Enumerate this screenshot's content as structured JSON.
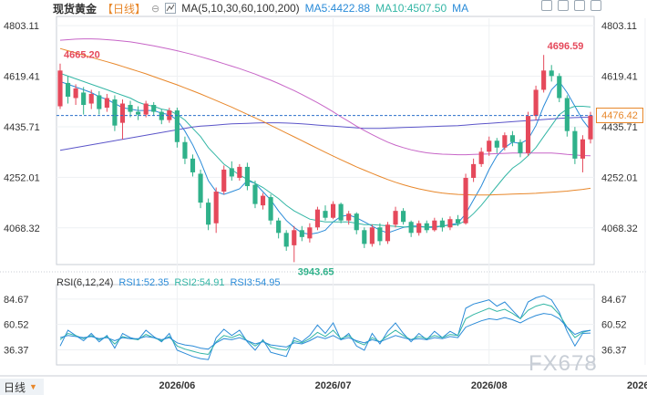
{
  "header": {
    "instrument": "现货黄金",
    "period": "【日线】",
    "ma_title": "MA(5,10,30,60,100,200)",
    "ma5": "MA5:4422.88",
    "ma10": "MA10:4507.50",
    "ma_next": "MA"
  },
  "rsi": {
    "title": "RSI(6,12,24)",
    "rsi1": "RSI1:52.35",
    "rsi2": "RSI2:54.91",
    "rsi3": "RSI3:54.95"
  },
  "footer": {
    "period_label": "日线"
  },
  "watermark": "FX678",
  "current_price_tag": "4476.42",
  "colors": {
    "up": "#e5495b",
    "down": "#2fb18a",
    "ma5": "#2a8bd8",
    "ma10": "#33b6a5",
    "ma30": "#5b55c9",
    "ma60": "#c765c7",
    "ma100": "#e8872a",
    "ma200": "#e8872a"
  },
  "chart_data": [
    {
      "type": "candlestick",
      "title": "现货黄金【日线】",
      "y_ticks": [
        "4803.11",
        "4619.41",
        "4435.71",
        "4252.01",
        "4068.32"
      ],
      "y_tick_values": [
        4803.11,
        4619.41,
        4435.71,
        4252.01,
        4068.32
      ],
      "ylim": [
        3935,
        4830
      ],
      "x_ticks": [
        "2026/06",
        "2026/07",
        "2026/08",
        "2026/09"
      ],
      "x_tick_index": [
        15,
        35,
        55,
        75
      ],
      "annotations": [
        {
          "text": "4665.20",
          "index": 0,
          "value": 4665.2
        },
        {
          "text": "4696.59",
          "index": 62,
          "value": 4696.59
        },
        {
          "text": "3943.65",
          "index": 30,
          "value": 3943.65
        }
      ],
      "last_price": 4476.42,
      "candles": [
        [
          4510,
          4640,
          4665,
          4500
        ],
        [
          4595,
          4545,
          4620,
          4520
        ],
        [
          4540,
          4575,
          4590,
          4515
        ],
        [
          4560,
          4515,
          4580,
          4480
        ],
        [
          4520,
          4555,
          4570,
          4500
        ],
        [
          4550,
          4500,
          4565,
          4480
        ],
        [
          4505,
          4540,
          4555,
          4490
        ],
        [
          4535,
          4440,
          4550,
          4420
        ],
        [
          4450,
          4520,
          4535,
          4390
        ],
        [
          4515,
          4490,
          4530,
          4470
        ],
        [
          4490,
          4480,
          4510,
          4460
        ],
        [
          4480,
          4520,
          4530,
          4470
        ],
        [
          4515,
          4490,
          4525,
          4475
        ],
        [
          4490,
          4460,
          4500,
          4445
        ],
        [
          4460,
          4495,
          4505,
          4450
        ],
        [
          4495,
          4380,
          4505,
          4360
        ],
        [
          4380,
          4320,
          4400,
          4300
        ],
        [
          4320,
          4270,
          4335,
          4255
        ],
        [
          4265,
          4160,
          4280,
          4140
        ],
        [
          4160,
          4080,
          4175,
          4060
        ],
        [
          4085,
          4200,
          4215,
          4050
        ],
        [
          4200,
          4280,
          4295,
          4190
        ],
        [
          4285,
          4255,
          4310,
          4240
        ],
        [
          4250,
          4290,
          4300,
          4240
        ],
        [
          4290,
          4220,
          4305,
          4205
        ],
        [
          4225,
          4155,
          4240,
          4140
        ],
        [
          4150,
          4185,
          4195,
          4135
        ],
        [
          4180,
          4095,
          4190,
          4080
        ],
        [
          4095,
          4050,
          4105,
          4030
        ],
        [
          4050,
          4000,
          4060,
          3985
        ],
        [
          4005,
          4060,
          4075,
          3943.65
        ],
        [
          4060,
          4035,
          4075,
          4020
        ],
        [
          4030,
          4070,
          4085,
          4015
        ],
        [
          4070,
          4135,
          4145,
          4060
        ],
        [
          4130,
          4105,
          4150,
          4095
        ],
        [
          4105,
          4155,
          4165,
          4100
        ],
        [
          4155,
          4095,
          4160,
          4085
        ],
        [
          4095,
          4120,
          4130,
          4080
        ],
        [
          4120,
          4060,
          4125,
          4045
        ],
        [
          4060,
          4010,
          4070,
          3995
        ],
        [
          4010,
          4070,
          4080,
          4000
        ],
        [
          4070,
          4020,
          4085,
          4005
        ],
        [
          4020,
          4080,
          4090,
          4010
        ],
        [
          4080,
          4130,
          4145,
          4070
        ],
        [
          4130,
          4090,
          4140,
          4080
        ],
        [
          4090,
          4050,
          4095,
          4035
        ],
        [
          4050,
          4085,
          4095,
          4040
        ],
        [
          4085,
          4060,
          4095,
          4050
        ],
        [
          4060,
          4095,
          4105,
          4055
        ],
        [
          4095,
          4070,
          4105,
          4055
        ],
        [
          4070,
          4100,
          4110,
          4060
        ],
        [
          4100,
          4085,
          4115,
          4075
        ],
        [
          4085,
          4250,
          4265,
          4080
        ],
        [
          4250,
          4300,
          4320,
          4235
        ],
        [
          4300,
          4345,
          4360,
          4290
        ],
        [
          4345,
          4385,
          4400,
          4330
        ],
        [
          4385,
          4360,
          4395,
          4340
        ],
        [
          4360,
          4405,
          4415,
          4350
        ],
        [
          4405,
          4380,
          4420,
          4365
        ],
        [
          4380,
          4340,
          4390,
          4325
        ],
        [
          4340,
          4475,
          4490,
          4330
        ],
        [
          4475,
          4570,
          4585,
          4460
        ],
        [
          4570,
          4640,
          4696.59,
          4560
        ],
        [
          4640,
          4620,
          4660,
          4600
        ],
        [
          4620,
          4540,
          4630,
          4525
        ],
        [
          4540,
          4420,
          4550,
          4400
        ],
        [
          4420,
          4320,
          4435,
          4300
        ],
        [
          4320,
          4390,
          4405,
          4270
        ],
        [
          4390,
          4476.42,
          4490,
          4375
        ]
      ],
      "ma_series": [
        {
          "name": "MA5",
          "values": [
            4600,
            4590,
            4580,
            4570,
            4560,
            4545,
            4535,
            4520,
            4505,
            4500,
            4495,
            4495,
            4495,
            4485,
            4480,
            4460,
            4420,
            4370,
            4310,
            4240,
            4200,
            4190,
            4200,
            4210,
            4240,
            4230,
            4200,
            4170,
            4130,
            4095,
            4070,
            4050,
            4045,
            4050,
            4060,
            4090,
            4110,
            4115,
            4105,
            4090,
            4075,
            4060,
            4050,
            4060,
            4070,
            4075,
            4075,
            4070,
            4070,
            4075,
            4080,
            4085,
            4120,
            4170,
            4220,
            4280,
            4330,
            4360,
            4380,
            4375,
            4390,
            4440,
            4510,
            4570,
            4600,
            4560,
            4510,
            4460,
            4422.88
          ]
        },
        {
          "name": "MA10",
          "values": [
            4630,
            4620,
            4610,
            4600,
            4590,
            4580,
            4570,
            4560,
            4550,
            4540,
            4525,
            4515,
            4510,
            4500,
            4495,
            4480,
            4460,
            4430,
            4400,
            4360,
            4330,
            4300,
            4280,
            4260,
            4245,
            4230,
            4215,
            4195,
            4175,
            4150,
            4130,
            4115,
            4100,
            4095,
            4090,
            4090,
            4090,
            4090,
            4085,
            4080,
            4080,
            4078,
            4076,
            4074,
            4072,
            4072,
            4072,
            4072,
            4073,
            4075,
            4078,
            4080,
            4095,
            4120,
            4150,
            4185,
            4220,
            4255,
            4285,
            4305,
            4330,
            4360,
            4400,
            4440,
            4480,
            4500,
            4510,
            4510,
            4507.5
          ]
        },
        {
          "name": "MA30",
          "values": [
            4350,
            4355,
            4360,
            4365,
            4370,
            4375,
            4380,
            4385,
            4390,
            4395,
            4400,
            4405,
            4410,
            4415,
            4420,
            4425,
            4430,
            4435,
            4438,
            4440,
            4442,
            4444,
            4446,
            4447,
            4448,
            4449,
            4450,
            4450,
            4450,
            4449,
            4448,
            4446,
            4444,
            4442,
            4440,
            4438,
            4436,
            4434,
            4432,
            4430,
            4430,
            4430,
            4431,
            4432,
            4433,
            4434,
            4435,
            4436,
            4437,
            4438,
            4439,
            4440,
            4442,
            4444,
            4446,
            4448,
            4450,
            4452,
            4454,
            4456,
            4458,
            4460,
            4462,
            4464,
            4466,
            4468,
            4469,
            4470,
            4470
          ]
        },
        {
          "name": "MA60",
          "values": [
            4750,
            4752,
            4754,
            4755,
            4755,
            4754,
            4752,
            4750,
            4747,
            4744,
            4740,
            4735,
            4730,
            4724,
            4718,
            4712,
            4705,
            4698,
            4690,
            4682,
            4674,
            4665,
            4656,
            4647,
            4637,
            4627,
            4616,
            4605,
            4593,
            4580,
            4567,
            4553,
            4538,
            4523,
            4507,
            4490,
            4472,
            4455,
            4438,
            4422,
            4407,
            4393,
            4380,
            4369,
            4360,
            4352,
            4346,
            4341,
            4338,
            4336,
            4335,
            4334,
            4334,
            4335,
            4336,
            4337,
            4338,
            4339,
            4340,
            4340,
            4340,
            4340,
            4340,
            4340,
            4338,
            4335,
            4333,
            4331,
            4330
          ]
        },
        {
          "name": "MA100",
          "values": [
            4720,
            4712,
            4704,
            4696,
            4688,
            4680,
            4672,
            4664,
            4655,
            4646,
            4637,
            4628,
            4618,
            4608,
            4598,
            4588,
            4577,
            4566,
            4555,
            4543,
            4531,
            4519,
            4507,
            4494,
            4481,
            4468,
            4455,
            4441,
            4427,
            4413,
            4399,
            4385,
            4371,
            4357,
            4343,
            4329,
            4316,
            4303,
            4290,
            4278,
            4266,
            4255,
            4244,
            4234,
            4225,
            4217,
            4210,
            4204,
            4199,
            4195,
            4192,
            4190,
            4189,
            4188,
            4188,
            4188,
            4189,
            4190,
            4191,
            4192,
            4193,
            4194,
            4196,
            4198,
            4200,
            4202,
            4205,
            4208,
            4212
          ]
        }
      ]
    },
    {
      "type": "line",
      "title": "RSI(6,12,24)",
      "y_ticks": [
        "84.67",
        "60.52",
        "36.37"
      ],
      "y_tick_values": [
        84.67,
        60.52,
        36.37
      ],
      "ylim": [
        22,
        95
      ],
      "series": [
        {
          "name": "RSI1",
          "values": [
            40,
            55,
            50,
            45,
            52,
            44,
            50,
            38,
            52,
            48,
            46,
            55,
            49,
            44,
            52,
            36,
            33,
            30,
            28,
            27,
            48,
            56,
            50,
            55,
            44,
            36,
            46,
            34,
            32,
            30,
            48,
            44,
            50,
            60,
            52,
            62,
            46,
            52,
            40,
            36,
            52,
            42,
            54,
            62,
            52,
            44,
            52,
            46,
            54,
            48,
            54,
            50,
            76,
            80,
            82,
            84,
            78,
            82,
            74,
            66,
            82,
            86,
            88,
            84,
            72,
            54,
            40,
            52,
            52.35
          ]
        },
        {
          "name": "RSI2",
          "values": [
            46,
            52,
            50,
            47,
            50,
            46,
            49,
            42,
            49,
            47,
            46,
            51,
            48,
            45,
            49,
            40,
            37,
            35,
            33,
            32,
            44,
            50,
            48,
            51,
            45,
            40,
            45,
            39,
            37,
            36,
            45,
            43,
            47,
            53,
            49,
            55,
            47,
            50,
            44,
            41,
            48,
            44,
            50,
            55,
            50,
            46,
            49,
            47,
            50,
            48,
            51,
            50,
            66,
            70,
            73,
            76,
            73,
            75,
            71,
            66,
            74,
            78,
            80,
            78,
            70,
            58,
            48,
            53,
            54.91
          ]
        },
        {
          "name": "RSI3",
          "values": [
            48,
            50,
            49,
            48,
            49,
            47,
            48,
            45,
            48,
            47,
            47,
            49,
            48,
            46,
            48,
            43,
            41,
            40,
            38,
            37,
            43,
            47,
            46,
            48,
            45,
            42,
            44,
            41,
            40,
            39,
            43,
            42,
            45,
            49,
            47,
            50,
            46,
            48,
            45,
            43,
            46,
            44,
            47,
            50,
            48,
            46,
            47,
            46,
            48,
            47,
            49,
            48,
            58,
            61,
            64,
            66,
            65,
            67,
            65,
            62,
            66,
            69,
            71,
            70,
            66,
            58,
            51,
            54,
            54.95
          ]
        }
      ]
    }
  ]
}
